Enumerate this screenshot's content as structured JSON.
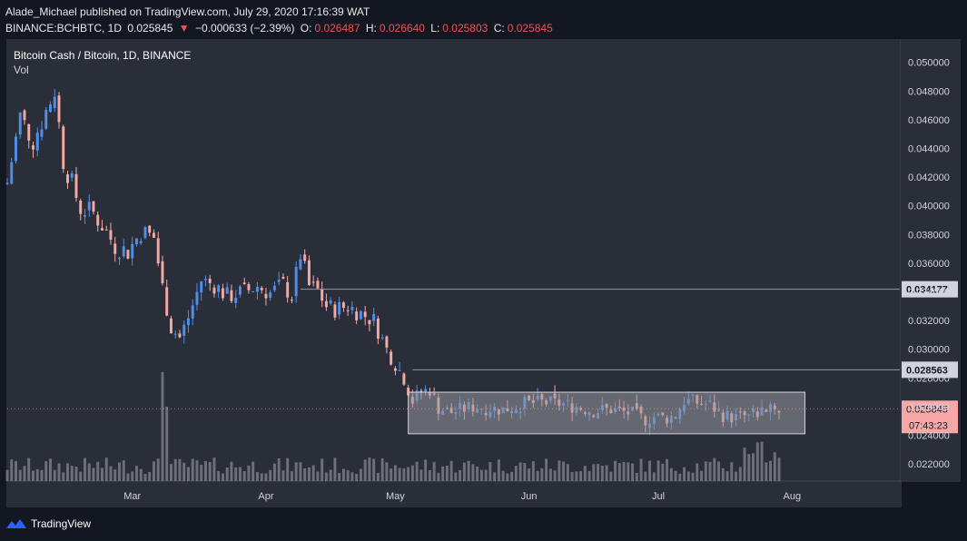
{
  "header": {
    "published_line": "Alade_Michael published on TradingView.com, July 29, 2020 17:16:39 WAT",
    "symbol": "BINANCE:BCHBTC, 1D",
    "last": "0.025845",
    "change_arrow": "▼",
    "change": "−0.000633 (−2.39%)",
    "o_label": "O:",
    "o_value": "0.026487",
    "h_label": "H:",
    "h_value": "0.026640",
    "l_label": "L:",
    "l_value": "0.025803",
    "c_label": "C:",
    "c_value": "0.025845"
  },
  "pane": {
    "title": "Bitcoin Cash / Bitcoin, 1D, BINANCE",
    "vol_label": "Vol"
  },
  "footer": {
    "brand": "TradingView"
  },
  "colors": {
    "background": "#131722",
    "pane": "#2a2e39",
    "up": "#4f8fea",
    "down": "#f4a9a5",
    "volume": "#7e8189",
    "box_fill": "#9598a1",
    "box_stroke": "#d1d4dc",
    "price_tag": "#f7a8a6",
    "level_tag": "#d1d4dc"
  },
  "chart_data": {
    "type": "candlestick",
    "title": "Bitcoin Cash / Bitcoin, 1D, BINANCE",
    "ylim": [
      0.0208,
      0.0515
    ],
    "y_ticks": [
      "0.050000",
      "0.048000",
      "0.046000",
      "0.044000",
      "0.042000",
      "0.040000",
      "0.038000",
      "0.036000",
      "0.034000",
      "0.032000",
      "0.030000",
      "0.028000",
      "0.026000",
      "0.024000",
      "0.022000"
    ],
    "x_ticks": [
      {
        "label": "Mar",
        "day": 29
      },
      {
        "label": "Apr",
        "day": 60
      },
      {
        "label": "May",
        "day": 90
      },
      {
        "label": "Jun",
        "day": 121
      },
      {
        "label": "Jul",
        "day": 151
      },
      {
        "label": "Aug",
        "day": 182
      }
    ],
    "x_range_days": [
      0,
      207
    ],
    "price_series": [
      [
        0,
        0.0416
      ],
      [
        3,
        0.0462
      ],
      [
        6,
        0.0446
      ],
      [
        9,
        0.0466
      ],
      [
        11,
        0.0481
      ],
      [
        13,
        0.0432
      ],
      [
        15,
        0.0415
      ],
      [
        17,
        0.0398
      ],
      [
        20,
        0.0395
      ],
      [
        23,
        0.0382
      ],
      [
        25,
        0.0372
      ],
      [
        28,
        0.0368
      ],
      [
        31,
        0.0382
      ],
      [
        34,
        0.0378
      ],
      [
        36,
        0.0343
      ],
      [
        38,
        0.0315
      ],
      [
        40,
        0.0308
      ],
      [
        42,
        0.0322
      ],
      [
        45,
        0.0348
      ],
      [
        48,
        0.0345
      ],
      [
        51,
        0.0337
      ],
      [
        55,
        0.034
      ],
      [
        58,
        0.0344
      ],
      [
        61,
        0.0339
      ],
      [
        64,
        0.0345
      ],
      [
        66,
        0.0337
      ],
      [
        68,
        0.0366
      ],
      [
        70,
        0.0344
      ],
      [
        72,
        0.0341
      ],
      [
        74,
        0.033
      ],
      [
        76,
        0.0328
      ],
      [
        79,
        0.033
      ],
      [
        82,
        0.0325
      ],
      [
        85,
        0.032
      ],
      [
        88,
        0.03
      ],
      [
        90,
        0.029
      ],
      [
        92,
        0.028
      ],
      [
        94,
        0.0264
      ],
      [
        96,
        0.027
      ],
      [
        98,
        0.0272
      ],
      [
        100,
        0.0259
      ],
      [
        103,
        0.0256
      ],
      [
        108,
        0.026
      ],
      [
        115,
        0.0258
      ],
      [
        120,
        0.0262
      ],
      [
        124,
        0.0263
      ],
      [
        128,
        0.0262
      ],
      [
        132,
        0.026
      ],
      [
        136,
        0.0257
      ],
      [
        140,
        0.0258
      ],
      [
        145,
        0.0255
      ],
      [
        148,
        0.0251
      ],
      [
        150,
        0.0253
      ],
      [
        153,
        0.0252
      ],
      [
        155,
        0.0254
      ],
      [
        157,
        0.0264
      ],
      [
        160,
        0.0263
      ],
      [
        163,
        0.0261
      ],
      [
        166,
        0.0254
      ],
      [
        169,
        0.0252
      ],
      [
        172,
        0.0254
      ],
      [
        175,
        0.0257
      ],
      [
        177,
        0.0262
      ],
      [
        179,
        0.0258
      ]
    ],
    "horizontal_levels": [
      {
        "value": 0.034177,
        "label": "0.034177"
      },
      {
        "value": 0.028563,
        "label": "0.028563"
      }
    ],
    "range_box": {
      "x_start_day": 93,
      "x_end_day": 185,
      "y_top": 0.027,
      "y_bottom": 0.0241
    },
    "last_price": {
      "value": 0.025845,
      "label": "0.025845",
      "countdown": "07:43:23"
    }
  }
}
